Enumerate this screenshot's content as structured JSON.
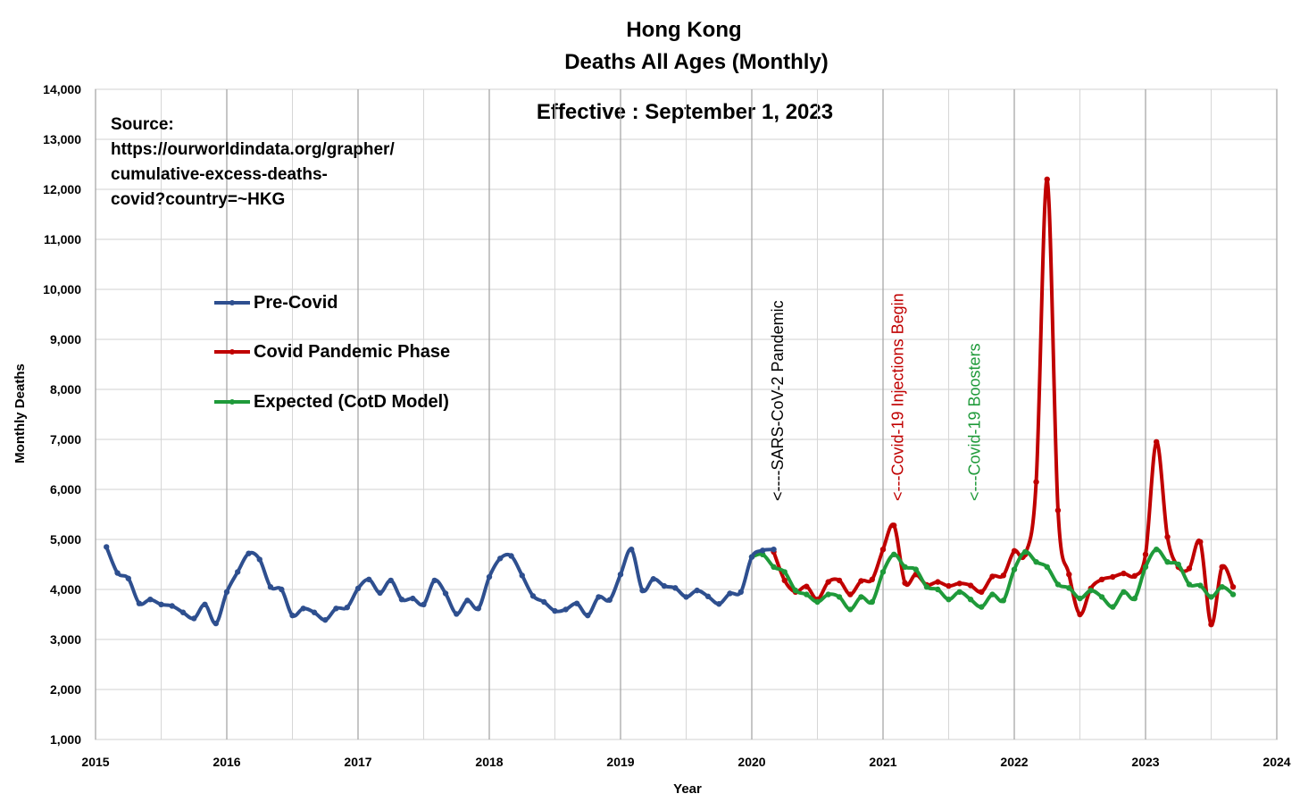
{
  "chart_data": {
    "type": "line",
    "title": "Hong Kong",
    "subtitle": "Deaths All Ages (Monthly)",
    "effective": "Effective : September 1, 2023",
    "xlabel": "Year",
    "ylabel": "Monthly Deaths",
    "xlim": [
      2015,
      2024
    ],
    "ylim": [
      1000,
      14000
    ],
    "x_ticks": [
      "2015",
      "2016",
      "2017",
      "2018",
      "2019",
      "2020",
      "2021",
      "2022",
      "2023",
      "2024"
    ],
    "y_ticks": [
      "1,000",
      "2,000",
      "3,000",
      "4,000",
      "5,000",
      "6,000",
      "7,000",
      "8,000",
      "9,000",
      "10,000",
      "11,000",
      "12,000",
      "13,000",
      "14,000"
    ],
    "grid": true,
    "legend_placement": "left",
    "source_lines": [
      "Source:",
      "https://ourworldindata.org/grapher/",
      "cumulative-excess-deaths-",
      "covid?country=~HKG"
    ],
    "series": [
      {
        "name": "Pre-Covid",
        "color": "#2e4f8f",
        "x": [
          2015.083,
          2015.167,
          2015.25,
          2015.333,
          2015.417,
          2015.5,
          2015.583,
          2015.667,
          2015.75,
          2015.833,
          2015.917,
          2016.0,
          2016.083,
          2016.167,
          2016.25,
          2016.333,
          2016.417,
          2016.5,
          2016.583,
          2016.667,
          2016.75,
          2016.833,
          2016.917,
          2017.0,
          2017.083,
          2017.167,
          2017.25,
          2017.333,
          2017.417,
          2017.5,
          2017.583,
          2017.667,
          2017.75,
          2017.833,
          2017.917,
          2018.0,
          2018.083,
          2018.167,
          2018.25,
          2018.333,
          2018.417,
          2018.5,
          2018.583,
          2018.667,
          2018.75,
          2018.833,
          2018.917,
          2019.0,
          2019.083,
          2019.167,
          2019.25,
          2019.333,
          2019.417,
          2019.5,
          2019.583,
          2019.667,
          2019.75,
          2019.833,
          2019.917,
          2020.0,
          2020.083,
          2020.167
        ],
        "values": [
          4850,
          4330,
          4220,
          3720,
          3800,
          3700,
          3670,
          3540,
          3420,
          3700,
          3320,
          3950,
          4350,
          4720,
          4600,
          4050,
          4000,
          3480,
          3620,
          3540,
          3390,
          3620,
          3640,
          4020,
          4200,
          3930,
          4180,
          3800,
          3820,
          3700,
          4180,
          3920,
          3510,
          3780,
          3620,
          4250,
          4620,
          4670,
          4280,
          3870,
          3750,
          3570,
          3600,
          3720,
          3480,
          3850,
          3790,
          4300,
          4800,
          3980,
          4210,
          4070,
          4030,
          3850,
          3980,
          3860,
          3710,
          3920,
          3950,
          4650,
          4780,
          4800
        ]
      },
      {
        "name": "Covid Pandemic Phase",
        "color": "#c00000",
        "x": [
          2020.167,
          2020.25,
          2020.333,
          2020.417,
          2020.5,
          2020.583,
          2020.667,
          2020.75,
          2020.833,
          2020.917,
          2021.0,
          2021.083,
          2021.167,
          2021.25,
          2021.333,
          2021.417,
          2021.5,
          2021.583,
          2021.667,
          2021.75,
          2021.833,
          2021.917,
          2022.0,
          2022.083,
          2022.167,
          2022.25,
          2022.333,
          2022.417,
          2022.5,
          2022.583,
          2022.667,
          2022.75,
          2022.833,
          2022.917,
          2023.0,
          2023.083,
          2023.167,
          2023.25,
          2023.333,
          2023.417,
          2023.5,
          2023.583,
          2023.667
        ],
        "values": [
          4750,
          4180,
          3950,
          4060,
          3800,
          4150,
          4180,
          3900,
          4170,
          4200,
          4800,
          5280,
          4130,
          4300,
          4090,
          4150,
          4070,
          4120,
          4080,
          3950,
          4260,
          4280,
          4770,
          4700,
          6150,
          12200,
          5580,
          4300,
          3500,
          4020,
          4200,
          4250,
          4320,
          4270,
          4700,
          6950,
          5050,
          4450,
          4420,
          4950,
          3300,
          4450,
          4050
        ]
      },
      {
        "name": "Expected (CotD Model)",
        "color": "#1f9a3a",
        "x": [
          2020.0,
          2020.083,
          2020.167,
          2020.25,
          2020.333,
          2020.417,
          2020.5,
          2020.583,
          2020.667,
          2020.75,
          2020.833,
          2020.917,
          2021.0,
          2021.083,
          2021.167,
          2021.25,
          2021.333,
          2021.417,
          2021.5,
          2021.583,
          2021.667,
          2021.75,
          2021.833,
          2021.917,
          2022.0,
          2022.083,
          2022.167,
          2022.25,
          2022.333,
          2022.417,
          2022.5,
          2022.583,
          2022.667,
          2022.75,
          2022.833,
          2022.917,
          2023.0,
          2023.083,
          2023.167,
          2023.25,
          2023.333,
          2023.417,
          2023.5,
          2023.583,
          2023.667
        ],
        "values": [
          4650,
          4700,
          4450,
          4350,
          3980,
          3900,
          3750,
          3900,
          3850,
          3600,
          3850,
          3750,
          4350,
          4700,
          4450,
          4400,
          4050,
          4000,
          3800,
          3950,
          3800,
          3650,
          3900,
          3780,
          4400,
          4750,
          4550,
          4450,
          4100,
          4030,
          3820,
          3980,
          3850,
          3650,
          3950,
          3820,
          4450,
          4800,
          4550,
          4500,
          4100,
          4080,
          3850,
          4050,
          3900
        ]
      }
    ],
    "annotations": [
      {
        "text": "<----SARS-CoV-2 Pandemic",
        "x": 2020.25,
        "color": "#000000"
      },
      {
        "text": "<---Covid-19 Injections Begin",
        "x": 2021.167,
        "color": "#c00000"
      },
      {
        "text": "<---Covid-19 Boosters",
        "x": 2021.75,
        "color": "#1f9a3a"
      }
    ]
  }
}
